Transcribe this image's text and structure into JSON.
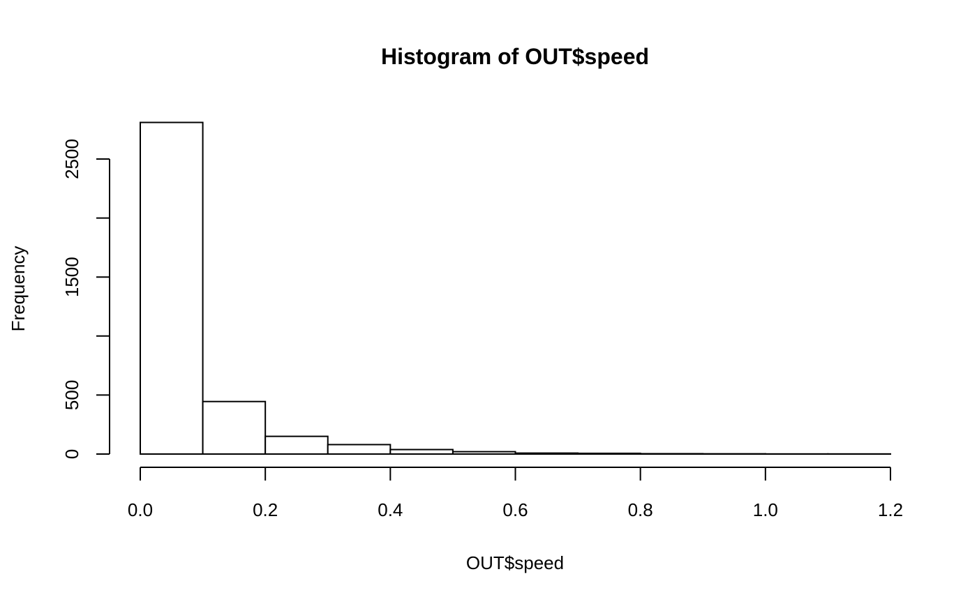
{
  "chart_data": {
    "type": "bar",
    "title": "Histogram of OUT$speed",
    "xlabel": "OUT$speed",
    "ylabel": "Frequency",
    "bins": [
      {
        "x0": 0.0,
        "x1": 0.1,
        "value": 2810
      },
      {
        "x0": 0.1,
        "x1": 0.2,
        "value": 445
      },
      {
        "x0": 0.2,
        "x1": 0.3,
        "value": 150
      },
      {
        "x0": 0.3,
        "x1": 0.4,
        "value": 80
      },
      {
        "x0": 0.4,
        "x1": 0.5,
        "value": 38
      },
      {
        "x0": 0.5,
        "x1": 0.6,
        "value": 20
      },
      {
        "x0": 0.6,
        "x1": 0.7,
        "value": 8
      },
      {
        "x0": 0.7,
        "x1": 0.8,
        "value": 6
      },
      {
        "x0": 0.8,
        "x1": 0.9,
        "value": 3
      },
      {
        "x0": 0.9,
        "x1": 1.0,
        "value": 2
      },
      {
        "x0": 1.0,
        "x1": 1.1,
        "value": 1
      },
      {
        "x0": 1.1,
        "x1": 1.2,
        "value": 1
      }
    ],
    "xlim": [
      0.0,
      1.2
    ],
    "ylim": [
      0,
      2810
    ],
    "x_ticks": [
      {
        "value": 0.0,
        "label": "0.0"
      },
      {
        "value": 0.2,
        "label": "0.2"
      },
      {
        "value": 0.4,
        "label": "0.4"
      },
      {
        "value": 0.6,
        "label": "0.6"
      },
      {
        "value": 0.8,
        "label": "0.8"
      },
      {
        "value": 1.0,
        "label": "1.0"
      },
      {
        "value": 1.2,
        "label": "1.2"
      }
    ],
    "y_ticks": [
      {
        "value": 0,
        "label": "0"
      },
      {
        "value": 500,
        "label": "500"
      },
      {
        "value": 1000,
        "label": ""
      },
      {
        "value": 1500,
        "label": "1500"
      },
      {
        "value": 2000,
        "label": ""
      },
      {
        "value": 2500,
        "label": "2500"
      }
    ],
    "grid": false,
    "legend": "none"
  }
}
